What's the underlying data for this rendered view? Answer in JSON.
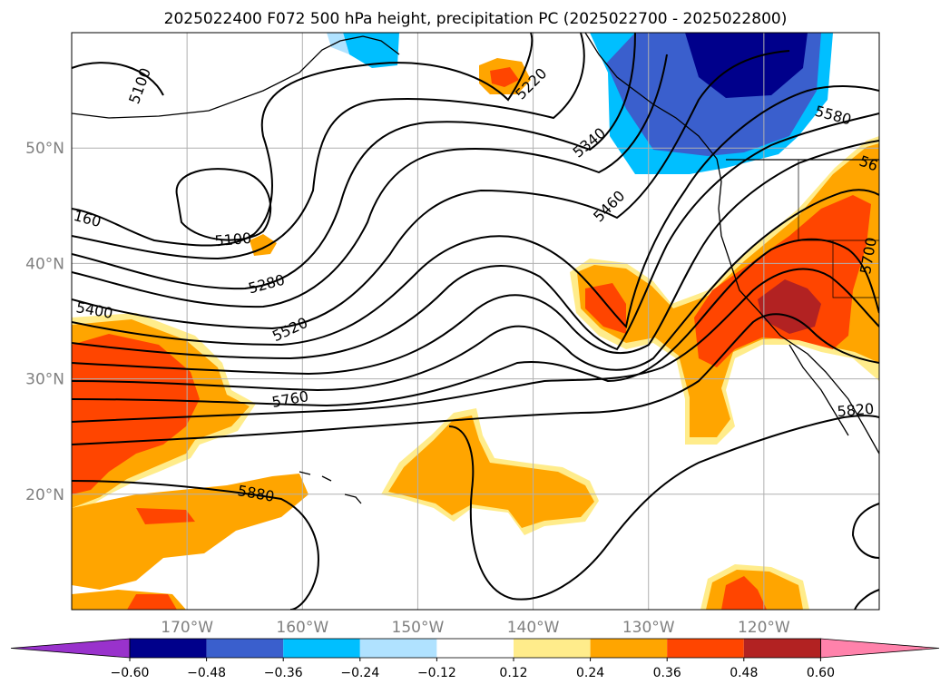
{
  "chart_data": {
    "type": "heatmap",
    "title": "2025022400 F072 500 hPa height, precipitation PC (2025022700 - 2025022800)",
    "map": {
      "lon_range": [
        -180,
        -110
      ],
      "lat_range": [
        10,
        60
      ],
      "grid": true,
      "lat_ticks": [
        "20°N",
        "30°N",
        "40°N",
        "50°N"
      ],
      "lon_ticks": [
        "170°W",
        "160°W",
        "150°W",
        "140°W",
        "130°W",
        "120°W"
      ]
    },
    "colorbar": {
      "orientation": "horizontal",
      "extend": "both",
      "levels": [
        -0.6,
        -0.48,
        -0.36,
        -0.24,
        -0.12,
        0.12,
        0.24,
        0.36,
        0.48,
        0.6
      ],
      "tick_labels": [
        "−0.60",
        "−0.48",
        "−0.36",
        "−0.24",
        "−0.12",
        "0.12",
        "0.24",
        "0.36",
        "0.48",
        "0.60"
      ],
      "colors": [
        "#9932cc",
        "#00008b",
        "#3a5fcd",
        "#00bfff",
        "#b0e2ff",
        "#ffffff",
        "#ffec8b",
        "#ffa500",
        "#ff4500",
        "#b22222",
        "#ff82ab"
      ]
    },
    "contour_labels": [
      "5100",
      "5220",
      "5340",
      "5460",
      "5580",
      "5100",
      "160",
      "5280",
      "5400",
      "5520",
      "5760",
      "5880",
      "5820",
      "5700",
      "56"
    ],
    "contour_intervals": [
      5100,
      5160,
      5220,
      5280,
      5340,
      5400,
      5460,
      5520,
      5580,
      5640,
      5700,
      5760,
      5820,
      5880
    ]
  }
}
